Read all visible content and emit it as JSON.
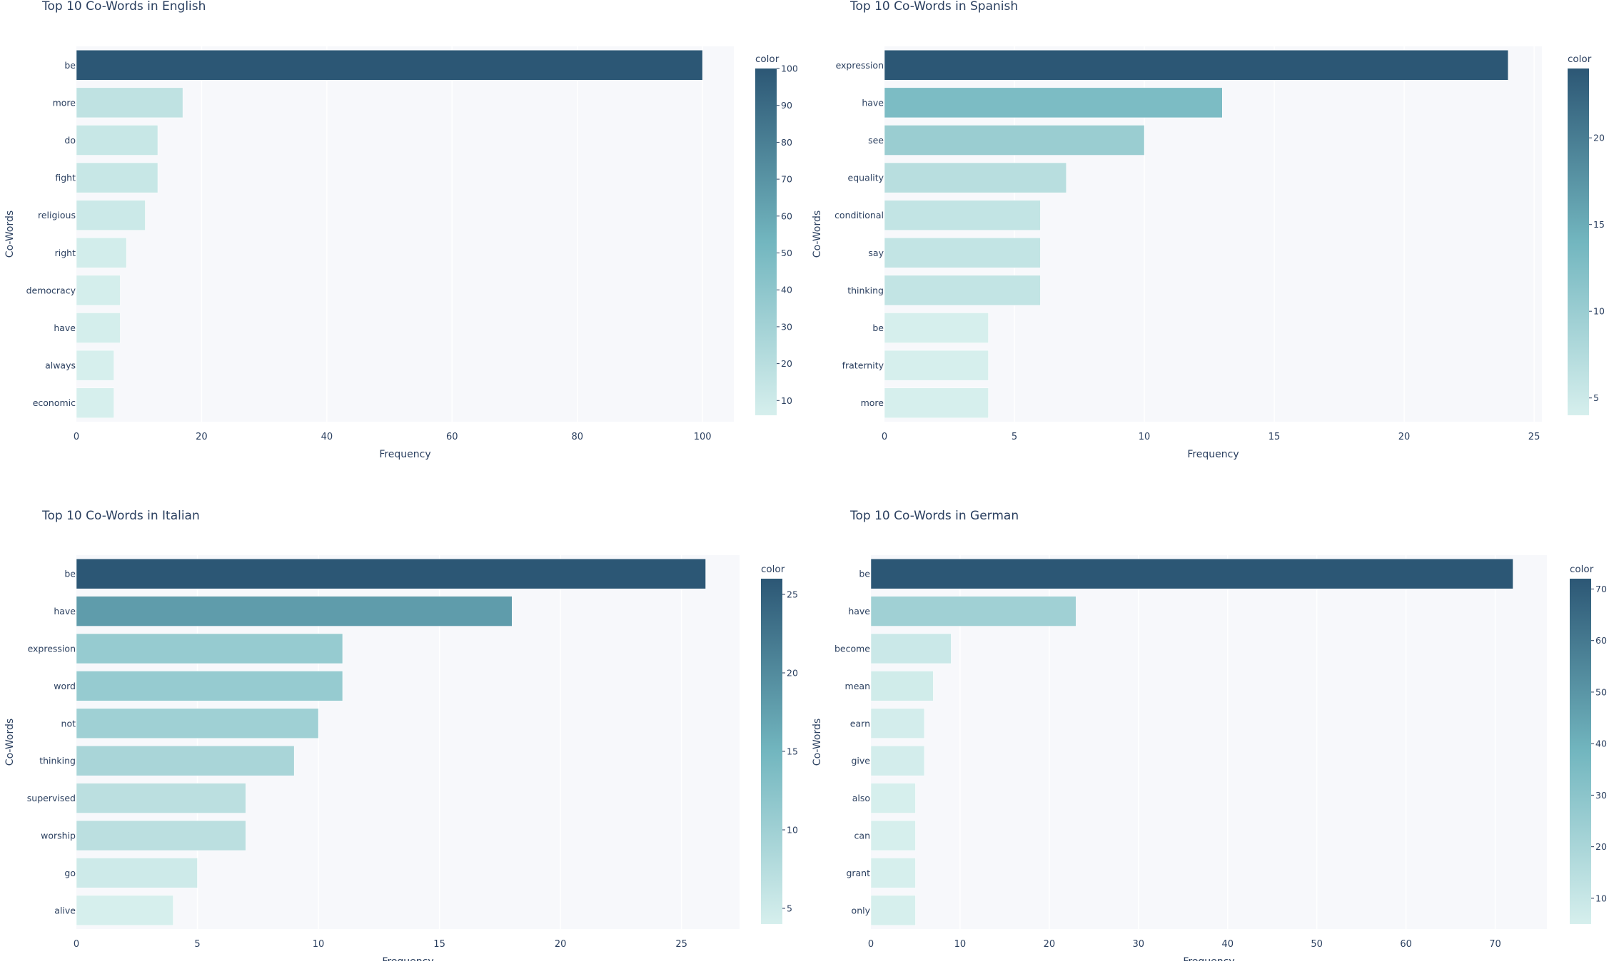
{
  "palette": {
    "low": "#d6efed",
    "mid": "#72b6bf",
    "high": "#2c5775",
    "plot_bg": "#f7f8fb",
    "grid": "#ffffff",
    "text": "#2a3f5f"
  },
  "chart_data": [
    {
      "type": "bar",
      "orientation": "horizontal",
      "title": "Top 10 Co-Words in English",
      "xlabel": "Frequency",
      "ylabel": "Co-Words",
      "categories": [
        "be",
        "more",
        "do",
        "fight",
        "religious",
        "right",
        "democracy",
        "have",
        "always",
        "economic"
      ],
      "values": [
        100,
        17,
        13,
        13,
        11,
        8,
        7,
        7,
        6,
        6
      ],
      "xlim": [
        0,
        105
      ],
      "xticks": [
        0,
        20,
        40,
        60,
        80,
        100
      ],
      "colorbar": {
        "title": "color",
        "range": [
          6,
          100
        ],
        "ticks": [
          10,
          20,
          30,
          40,
          50,
          60,
          70,
          80,
          90,
          100
        ]
      }
    },
    {
      "type": "bar",
      "orientation": "horizontal",
      "title": "Top 10 Co-Words in Spanish",
      "xlabel": "Frequency",
      "ylabel": "Co-Words",
      "categories": [
        "expression",
        "have",
        "see",
        "equality",
        "conditional",
        "say",
        "thinking",
        "be",
        "fraternity",
        "more"
      ],
      "values": [
        24,
        13,
        10,
        7,
        6,
        6,
        6,
        4,
        4,
        4
      ],
      "xlim": [
        0,
        25.3
      ],
      "xticks": [
        0,
        5,
        10,
        15,
        20,
        25
      ],
      "colorbar": {
        "title": "color",
        "range": [
          4,
          24
        ],
        "ticks": [
          5,
          10,
          15,
          20
        ]
      }
    },
    {
      "type": "bar",
      "orientation": "horizontal",
      "title": "Top 10 Co-Words in Italian",
      "xlabel": "Frequency",
      "ylabel": "Co-Words",
      "categories": [
        "be",
        "have",
        "expression",
        "word",
        "not",
        "thinking",
        "supervised",
        "worship",
        "go",
        "alive"
      ],
      "values": [
        26,
        18,
        11,
        11,
        10,
        9,
        7,
        7,
        5,
        4
      ],
      "xlim": [
        0,
        27.4
      ],
      "xticks": [
        0,
        5,
        10,
        15,
        20,
        25
      ],
      "colorbar": {
        "title": "color",
        "range": [
          4,
          26
        ],
        "ticks": [
          5,
          10,
          15,
          20,
          25
        ]
      }
    },
    {
      "type": "bar",
      "orientation": "horizontal",
      "title": "Top 10 Co-Words in German",
      "xlabel": "Frequency",
      "ylabel": "Co-Words",
      "categories": [
        "be",
        "have",
        "become",
        "mean",
        "earn",
        "give",
        "also",
        "can",
        "grant",
        "only"
      ],
      "values": [
        72,
        23,
        9,
        7,
        6,
        6,
        5,
        5,
        5,
        5
      ],
      "xlim": [
        0,
        75.8
      ],
      "xticks": [
        0,
        10,
        20,
        30,
        40,
        50,
        60,
        70
      ],
      "colorbar": {
        "title": "color",
        "range": [
          5,
          72
        ],
        "ticks": [
          10,
          20,
          30,
          40,
          50,
          60,
          70
        ]
      }
    }
  ]
}
